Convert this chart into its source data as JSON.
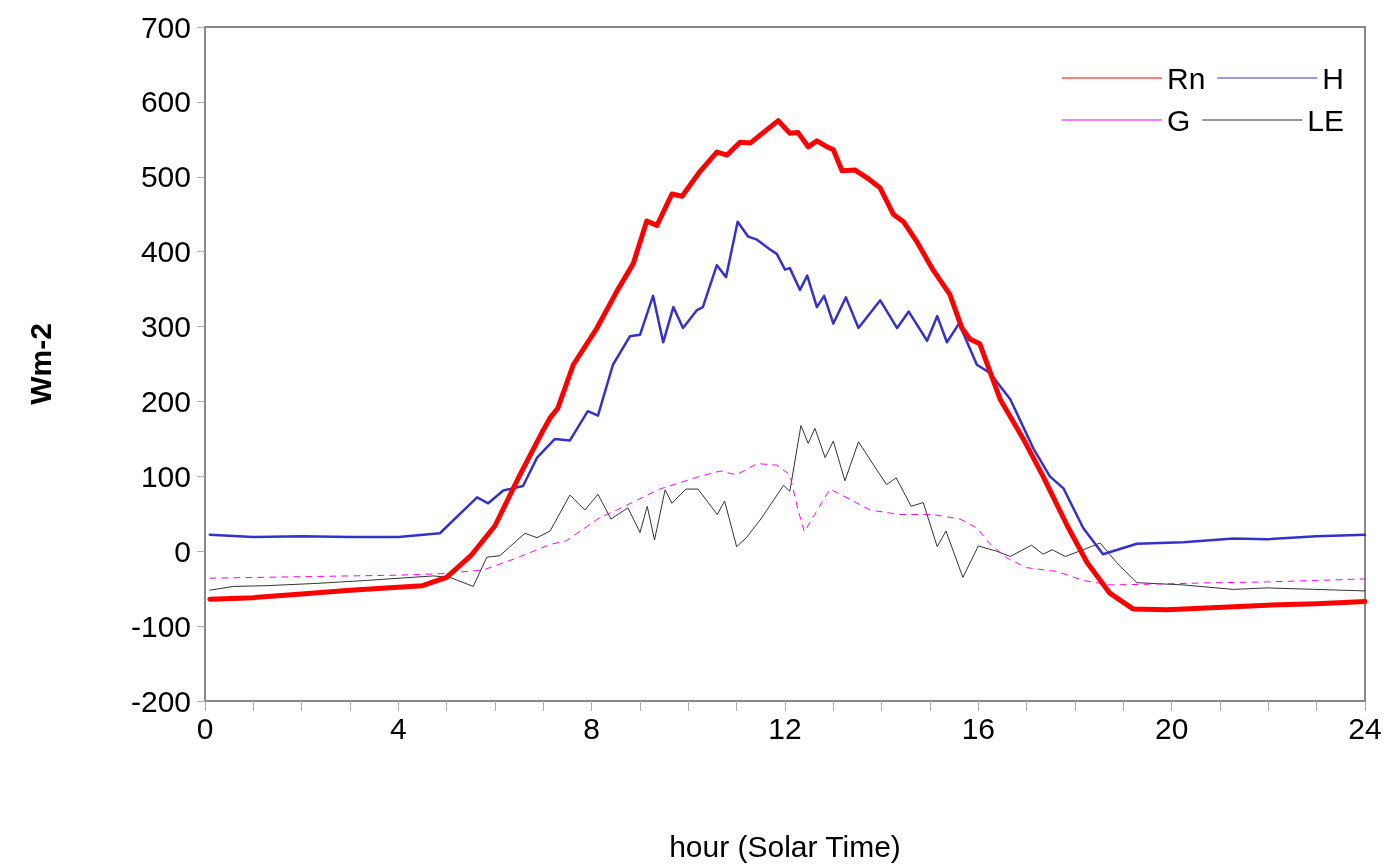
{
  "chart_data": {
    "type": "line",
    "xlabel": "hour (Solar Time)",
    "ylabel": "Wm-2",
    "xlim": [
      0,
      24
    ],
    "xticks": [
      0,
      {
        "value": 1,
        "label": null
      },
      {
        "value": 2,
        "label": null
      },
      {
        "value": 3,
        "label": null
      },
      4,
      {
        "value": 5,
        "label": null
      },
      {
        "value": 6,
        "label": null
      },
      {
        "value": 7,
        "label": null
      },
      8,
      {
        "value": 9,
        "label": null
      },
      {
        "value": 10,
        "label": null
      },
      {
        "value": 11,
        "label": null
      },
      12,
      {
        "value": 13,
        "label": null
      },
      {
        "value": 14,
        "label": null
      },
      {
        "value": 15,
        "label": null
      },
      16,
      {
        "value": 17,
        "label": null
      },
      {
        "value": 18,
        "label": null
      },
      {
        "value": 19,
        "label": null
      },
      20,
      {
        "value": 21,
        "label": null
      },
      {
        "value": 22,
        "label": null
      },
      {
        "value": 23,
        "label": null
      },
      24
    ],
    "ylim": [
      -200,
      700
    ],
    "yticks": [
      -200,
      -100,
      0,
      100,
      200,
      300,
      400,
      500,
      600,
      700
    ],
    "grid": false,
    "legend": "top right",
    "marker": "none",
    "series": [
      {
        "name": "Rn",
        "color": "#ff0000",
        "line_style": "solid",
        "x": [
          0.1,
          1,
          2,
          3,
          4,
          4.5,
          5,
          5.5,
          6,
          6.5,
          7,
          7.14,
          7.3,
          7.62,
          8.11,
          8.52,
          8.86,
          9.14,
          9.35,
          9.66,
          9.87,
          10.24,
          10.59,
          10.8,
          11.07,
          11.28,
          11.55,
          11.86,
          12.1,
          12.27,
          12.48,
          12.66,
          12.87,
          13,
          13.18,
          13.45,
          13.69,
          13.97,
          14.24,
          14.45,
          14.73,
          15.06,
          15.41,
          15.66,
          15.83,
          16.03,
          16.45,
          16.93,
          17.34,
          17.84,
          18.25,
          18.72,
          19.2,
          19.9,
          20.94,
          21.97,
          23,
          24
        ],
        "values": [
          -64,
          -62,
          -57,
          -52,
          -48,
          -46,
          -35,
          -6,
          34,
          100,
          162,
          178,
          191,
          249,
          298,
          347,
          384,
          441,
          435,
          477,
          474,
          507,
          533,
          529,
          546,
          545,
          559,
          575,
          558,
          559,
          540,
          548,
          540,
          536,
          508,
          509,
          499,
          485,
          450,
          440,
          413,
          376,
          343,
          298,
          283,
          277,
          203,
          150,
          100,
          34,
          -15,
          -56,
          -77,
          -78,
          -75,
          -72,
          -70,
          -67
        ]
      },
      {
        "name": "H",
        "color": "#3333cc",
        "line_style": "solid",
        "x": [
          0.1,
          1,
          2,
          3,
          4,
          4.86,
          5.63,
          5.86,
          6.17,
          6.58,
          6.87,
          7.24,
          7.55,
          7.92,
          8.13,
          8.44,
          8.79,
          9,
          9.27,
          9.48,
          9.69,
          9.89,
          10.18,
          10.3,
          10.59,
          10.78,
          11.02,
          11.24,
          11.42,
          11.69,
          11.83,
          12,
          12.1,
          12.31,
          12.46,
          12.66,
          12.81,
          13,
          13.26,
          13.52,
          13.97,
          14.32,
          14.56,
          14.94,
          15.15,
          15.35,
          15.6,
          15.97,
          16.24,
          16.66,
          17.14,
          17.48,
          17.76,
          18.17,
          18.58,
          19.28,
          20.24,
          21.28,
          21.97,
          23,
          24
        ],
        "values": [
          22,
          19,
          20,
          19,
          19,
          24,
          72,
          64,
          81,
          87,
          125,
          150,
          148,
          187,
          181,
          249,
          287,
          289,
          341,
          279,
          326,
          298,
          322,
          326,
          382,
          366,
          440,
          420,
          416,
          403,
          397,
          376,
          378,
          349,
          368,
          326,
          341,
          304,
          339,
          298,
          335,
          298,
          320,
          281,
          314,
          279,
          304,
          249,
          238,
          203,
          137,
          100,
          84,
          31,
          -4,
          10,
          12,
          17,
          16,
          20,
          22
        ]
      },
      {
        "name": "G",
        "color": "#ff00ff",
        "line_style": "dashed",
        "x": [
          0.1,
          2,
          4,
          4.9,
          5.76,
          6.45,
          7.14,
          7.48,
          8.17,
          8.52,
          9.41,
          10.24,
          10.66,
          11,
          11.42,
          11.83,
          12.1,
          12.27,
          12.4,
          12.93,
          13.35,
          13.76,
          14.38,
          15.06,
          15.62,
          15.97,
          16.24,
          16.59,
          17,
          17.62,
          18.17,
          18.72,
          19.55,
          20.94,
          21.97,
          24
        ],
        "values": [
          -36,
          -34,
          -32,
          -30,
          -25,
          -9,
          9,
          14,
          45,
          55,
          83,
          100,
          107,
          102,
          117,
          115,
          102,
          55,
          26,
          83,
          69,
          55,
          49,
          49,
          43,
          31,
          10,
          -9,
          -22,
          -27,
          -39,
          -45,
          -44,
          -42,
          -41,
          -37
        ]
      },
      {
        "name": "LE",
        "color": "#333333",
        "line_style": "solid",
        "x": [
          0.1,
          0.59,
          1.28,
          2.3,
          3.34,
          4.72,
          5.07,
          5.55,
          5.83,
          6.1,
          6.62,
          6.87,
          7.14,
          7.55,
          7.86,
          8.13,
          8.4,
          8.75,
          9,
          9.15,
          9.3,
          9.52,
          9.66,
          9.95,
          10.2,
          10.6,
          10.75,
          11,
          11.2,
          11.5,
          11.97,
          12.1,
          12.33,
          12.48,
          12.62,
          12.83,
          13,
          13.24,
          13.52,
          14.1,
          14.3,
          14.61,
          14.86,
          15.15,
          15.33,
          15.68,
          16,
          16.38,
          16.66,
          17.1,
          17.34,
          17.53,
          17.8,
          18.17,
          18.52,
          18.86,
          19.28,
          20.24,
          21.28,
          21.97,
          24
        ],
        "values": [
          -52,
          -47,
          -46,
          -43,
          -39,
          -33,
          -35,
          -47,
          -8,
          -6,
          24,
          18,
          27,
          75,
          55,
          76,
          43,
          58,
          25,
          60,
          15,
          82,
          64,
          83,
          83,
          49,
          67,
          6,
          18,
          43,
          88,
          80,
          168,
          144,
          164,
          125,
          147,
          94,
          146,
          89,
          98,
          60,
          65,
          6,
          27,
          -35,
          7,
          0,
          -7,
          8,
          -4,
          2,
          -7,
          2,
          11,
          -15,
          -42,
          -45,
          -51,
          -49,
          -53
        ]
      }
    ]
  }
}
